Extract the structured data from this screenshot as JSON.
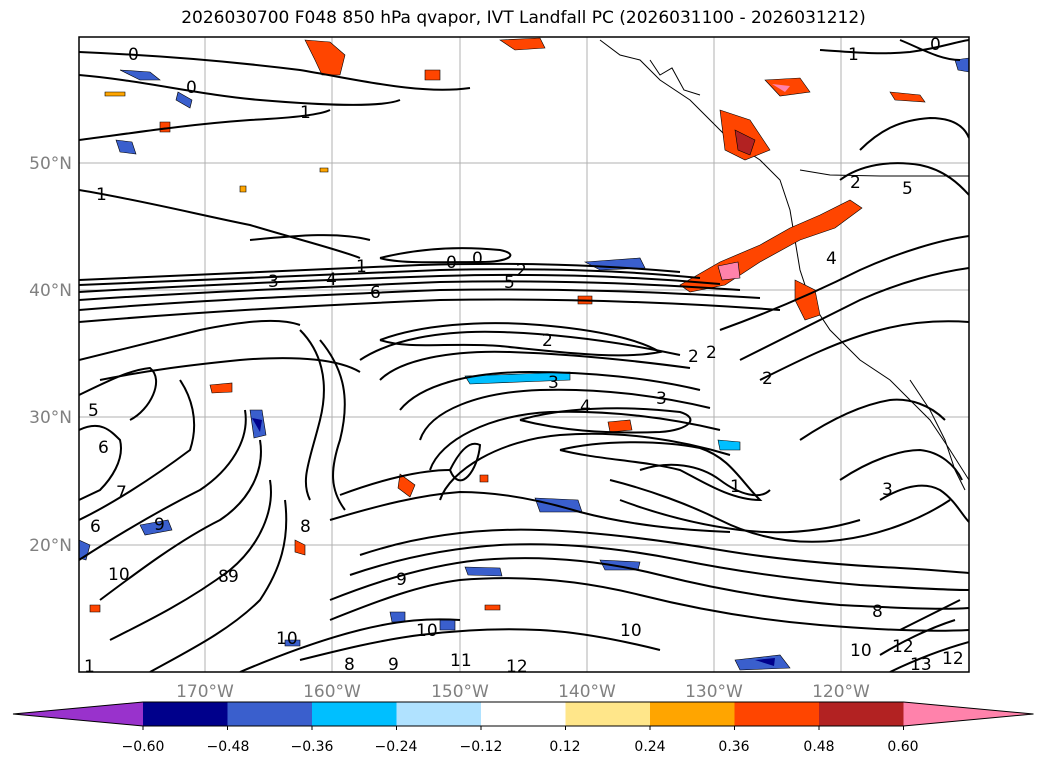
{
  "title": "2026030700 F048 850 hPa qvapor, IVT Landfall PC (2026031100 - 2026031212)",
  "grid_labels": {
    "lat": [
      "50°N",
      "40°N",
      "30°N",
      "20°N"
    ],
    "lon": [
      "170°W",
      "160°W",
      "150°W",
      "140°W",
      "130°W",
      "120°W"
    ]
  },
  "contour_labels": [
    "0",
    "1",
    "0",
    "1",
    "0",
    "1",
    "3",
    "4",
    "1",
    "6",
    "0",
    "0",
    "2",
    "5",
    "2",
    "2",
    "2",
    "3",
    "3",
    "4",
    "2",
    "1",
    "5",
    "6",
    "7",
    "6",
    "9",
    "8",
    "10",
    "8",
    "9",
    "10",
    "9",
    "8",
    "9",
    "10",
    "11",
    "12",
    "10",
    "8",
    "10",
    "12",
    "13",
    "12",
    "3",
    "2",
    "4",
    "5",
    "1"
  ],
  "colorbar": {
    "ticks": [
      "−0.60",
      "−0.48",
      "−0.36",
      "−0.24",
      "−0.12",
      "0.12",
      "0.24",
      "0.36",
      "0.48",
      "0.60"
    ],
    "colors": [
      "#9932cc",
      "#00008b",
      "#3a5fcd",
      "#00bfff",
      "#b0e2ff",
      "#ffffff",
      "#ffe68a",
      "#ffa500",
      "#ff4500",
      "#b22222",
      "#ff82ab"
    ]
  }
}
